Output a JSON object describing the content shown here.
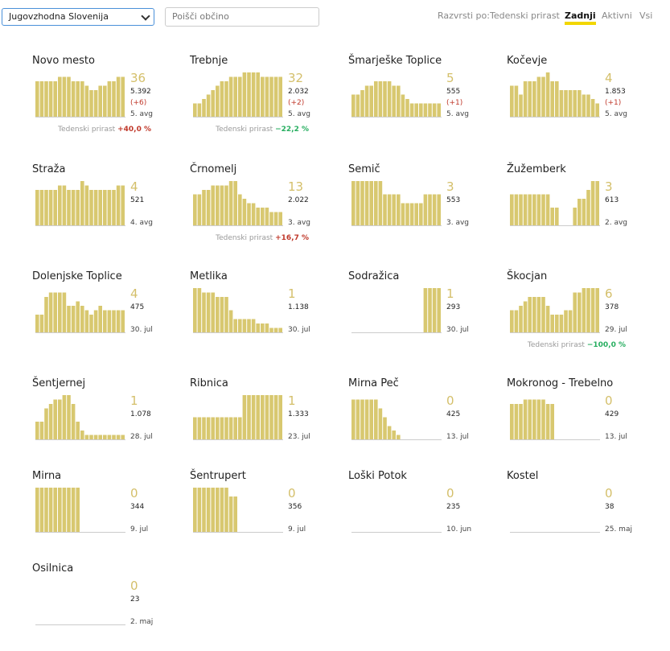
{
  "controls": {
    "region": "Jugovzhodna Slovenija",
    "search_placeholder": "Poišči občino",
    "sort_label": "Razvrsti po:",
    "sort_options": [
      "Tedenski prirast",
      "Zadnji",
      "Aktivni",
      "Vsi"
    ],
    "sort_active": 1
  },
  "bar_color": "#d8c870",
  "cards": [
    {
      "name": "Novo mesto",
      "count": 36,
      "total": "5.392",
      "delta": "(+6)",
      "date": "5. avg",
      "growth_label": "Tedenski prirast",
      "growth": "+40,0 %",
      "growth_color": "#c0392b",
      "bars": [
        8,
        8,
        8,
        8,
        8,
        9,
        9,
        9,
        8,
        8,
        8,
        7,
        6,
        6,
        7,
        7,
        8,
        8,
        9,
        9
      ]
    },
    {
      "name": "Trebnje",
      "count": 32,
      "total": "2.032",
      "delta": "(+2)",
      "date": "5. avg",
      "growth_label": "Tedenski prirast",
      "growth": "−22,2 %",
      "growth_color": "#27ae60",
      "bars": [
        3,
        3,
        4,
        5,
        6,
        7,
        8,
        8,
        9,
        9,
        9,
        10,
        10,
        10,
        10,
        9,
        9,
        9,
        9,
        9
      ]
    },
    {
      "name": "Šmarješke Toplice",
      "count": 5,
      "total": "555",
      "delta": "(+1)",
      "date": "5. avg",
      "bars": [
        5,
        5,
        6,
        7,
        7,
        8,
        8,
        8,
        8,
        7,
        7,
        5,
        4,
        3,
        3,
        3,
        3,
        3,
        3,
        3
      ]
    },
    {
      "name": "Kočevje",
      "count": 4,
      "total": "1.853",
      "delta": "(+1)",
      "date": "5. avg",
      "bars": [
        7,
        7,
        5,
        8,
        8,
        8,
        9,
        9,
        10,
        8,
        8,
        6,
        6,
        6,
        6,
        6,
        5,
        5,
        4,
        3
      ]
    },
    {
      "name": "Straža",
      "count": 4,
      "total": "521",
      "date": "4. avg",
      "bars": [
        8,
        8,
        8,
        8,
        8,
        9,
        9,
        8,
        8,
        8,
        10,
        9,
        8,
        8,
        8,
        8,
        8,
        8,
        9,
        9
      ]
    },
    {
      "name": "Črnomelj",
      "count": 13,
      "total": "2.022",
      "date": "3. avg",
      "growth_label": "Tedenski prirast",
      "growth": "+16,7 %",
      "growth_color": "#c0392b",
      "bars": [
        7,
        7,
        8,
        8,
        9,
        9,
        9,
        9,
        10,
        10,
        7,
        6,
        5,
        5,
        4,
        4,
        4,
        3,
        3,
        3
      ]
    },
    {
      "name": "Semič",
      "count": 3,
      "total": "553",
      "date": "3. avg",
      "bars": [
        10,
        10,
        10,
        10,
        10,
        10,
        10,
        7,
        7,
        7,
        7,
        5,
        5,
        5,
        5,
        5,
        7,
        7,
        7,
        7
      ]
    },
    {
      "name": "Žužemberk",
      "count": 3,
      "total": "613",
      "date": "2. avg",
      "bars": [
        7,
        7,
        7,
        7,
        7,
        7,
        7,
        7,
        7,
        4,
        4,
        0,
        0,
        0,
        4,
        6,
        6,
        8,
        10,
        10
      ]
    },
    {
      "name": "Dolenjske Toplice",
      "count": 4,
      "total": "475",
      "date": "30. jul",
      "bars": [
        4,
        4,
        8,
        9,
        9,
        9,
        9,
        6,
        6,
        7,
        6,
        5,
        4,
        5,
        6,
        5,
        5,
        5,
        5,
        5
      ]
    },
    {
      "name": "Metlika",
      "count": 1,
      "total": "1.138",
      "date": "30. jul",
      "bars": [
        10,
        10,
        9,
        9,
        9,
        8,
        8,
        8,
        5,
        3,
        3,
        3,
        3,
        3,
        2,
        2,
        2,
        1,
        1,
        1
      ]
    },
    {
      "name": "Sodražica",
      "count": 1,
      "total": "293",
      "date": "30. jul",
      "bars": [
        0,
        0,
        0,
        0,
        0,
        0,
        0,
        0,
        0,
        0,
        0,
        0,
        0,
        0,
        0,
        0,
        10,
        10,
        10,
        10
      ]
    },
    {
      "name": "Škocjan",
      "count": 6,
      "total": "378",
      "date": "29. jul",
      "growth_label": "Tedenski prirast",
      "growth": "−100,0 %",
      "growth_color": "#27ae60",
      "bars": [
        5,
        5,
        6,
        7,
        8,
        8,
        8,
        8,
        6,
        4,
        4,
        4,
        5,
        5,
        9,
        9,
        10,
        10,
        10,
        10
      ]
    },
    {
      "name": "Šentjernej",
      "count": 1,
      "total": "1.078",
      "date": "28. jul",
      "bars": [
        4,
        4,
        7,
        8,
        9,
        9,
        10,
        10,
        8,
        4,
        2,
        1,
        1,
        1,
        1,
        1,
        1,
        1,
        1,
        1
      ]
    },
    {
      "name": "Ribnica",
      "count": 1,
      "total": "1.333",
      "date": "23. jul",
      "bars": [
        5,
        5,
        5,
        5,
        5,
        5,
        5,
        5,
        5,
        5,
        5,
        10,
        10,
        10,
        10,
        10,
        10,
        10,
        10,
        10
      ]
    },
    {
      "name": "Mirna Peč",
      "count": 0,
      "total": "425",
      "date": "13. jul",
      "bars": [
        9,
        9,
        9,
        9,
        9,
        9,
        7,
        5,
        3,
        2,
        1,
        0,
        0,
        0,
        0,
        0,
        0,
        0,
        0,
        0
      ]
    },
    {
      "name": "Mokronog - Trebelno",
      "count": 0,
      "total": "429",
      "date": "13. jul",
      "bars": [
        8,
        8,
        8,
        9,
        9,
        9,
        9,
        9,
        8,
        8,
        0,
        0,
        0,
        0,
        0,
        0,
        0,
        0,
        0,
        0
      ]
    },
    {
      "name": "Mirna",
      "count": 0,
      "total": "344",
      "date": "9. jul",
      "bars": [
        10,
        10,
        10,
        10,
        10,
        10,
        10,
        10,
        10,
        10,
        0,
        0,
        0,
        0,
        0,
        0,
        0,
        0,
        0,
        0
      ]
    },
    {
      "name": "Šentrupert",
      "count": 0,
      "total": "356",
      "date": "9. jul",
      "bars": [
        10,
        10,
        10,
        10,
        10,
        10,
        10,
        10,
        8,
        8,
        0,
        0,
        0,
        0,
        0,
        0,
        0,
        0,
        0,
        0
      ]
    },
    {
      "name": "Loški Potok",
      "count": 0,
      "total": "235",
      "date": "10. jun",
      "bars": [
        0,
        0,
        0,
        0,
        0,
        0,
        0,
        0,
        0,
        0,
        0,
        0,
        0,
        0,
        0,
        0,
        0,
        0,
        0,
        0
      ]
    },
    {
      "name": "Kostel",
      "count": 0,
      "total": "38",
      "date": "25. maj",
      "bars": [
        0,
        0,
        0,
        0,
        0,
        0,
        0,
        0,
        0,
        0,
        0,
        0,
        0,
        0,
        0,
        0,
        0,
        0,
        0,
        0
      ]
    },
    {
      "name": "Osilnica",
      "count": 0,
      "total": "23",
      "date": "2. maj",
      "bars": [
        0,
        0,
        0,
        0,
        0,
        0,
        0,
        0,
        0,
        0,
        0,
        0,
        0,
        0,
        0,
        0,
        0,
        0,
        0,
        0
      ]
    }
  ]
}
